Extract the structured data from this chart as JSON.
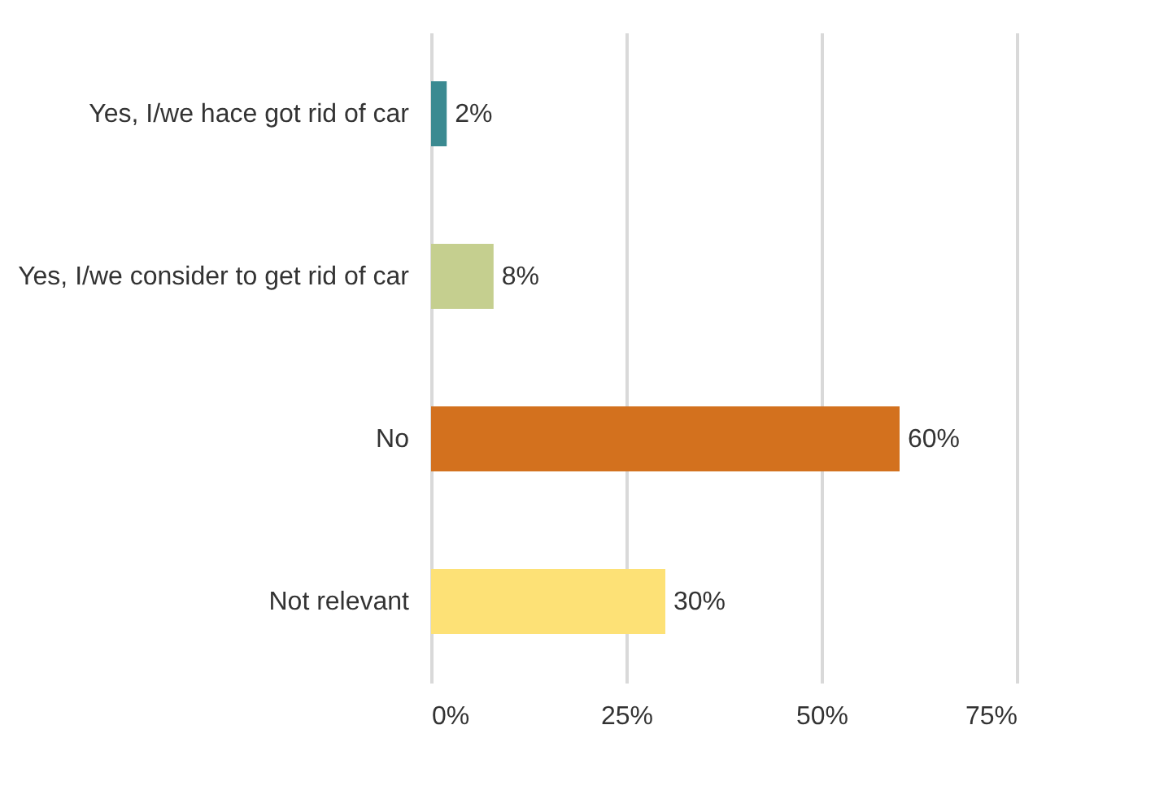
{
  "chart_data": {
    "type": "bar",
    "orientation": "horizontal",
    "categories": [
      "Yes, I/we hace got rid of car",
      "Yes, I/we consider to get rid of car",
      "No",
      "Not relevant"
    ],
    "values": [
      2,
      8,
      60,
      30
    ],
    "colors": [
      "#3b8a91",
      "#c5cf8f",
      "#d3711e",
      "#fde176"
    ],
    "value_labels": [
      "2%",
      "8%",
      "60%",
      "30%"
    ],
    "xlim": [
      0,
      75
    ],
    "xticks": [
      {
        "value": 0,
        "label": "0%"
      },
      {
        "value": 25,
        "label": "25%"
      },
      {
        "value": 50,
        "label": "50%"
      },
      {
        "value": 75,
        "label": "75%"
      }
    ],
    "grid": "x"
  }
}
